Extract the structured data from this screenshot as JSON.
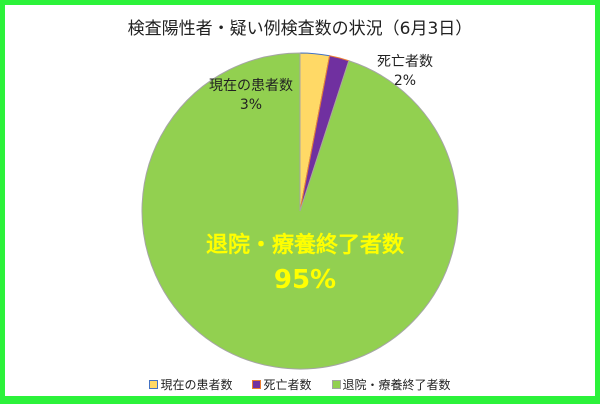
{
  "chart_data": {
    "type": "pie",
    "title": "検査陽性者・疑い例検査数の状況（6月3日）",
    "slices": [
      {
        "name": "現在の患者数",
        "value": 3,
        "label": "3%",
        "color": "#ffd966",
        "stroke": "#4472c4"
      },
      {
        "name": "死亡者数",
        "value": 2,
        "label": "2%",
        "color": "#7030a0",
        "stroke": "#ed7d31"
      },
      {
        "name": "退院・療養終了者数",
        "value": 95,
        "label": "95%",
        "color": "#92d050",
        "stroke": "#a5a5a5"
      }
    ],
    "legend_position": "bottom",
    "frame_color": "#2cf23a"
  }
}
